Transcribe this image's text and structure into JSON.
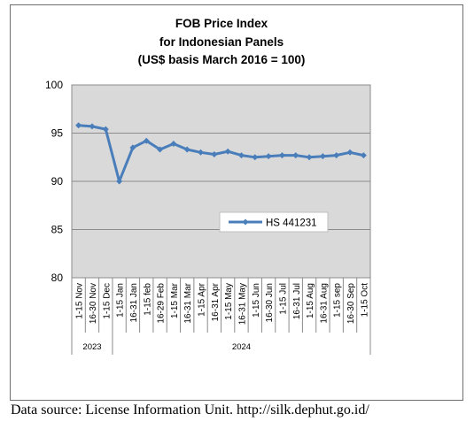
{
  "chart_data": {
    "type": "line",
    "title": [
      "FOB Price Index",
      "for Indonesian Panels",
      "(US$ basis March 2016 = 100)"
    ],
    "categories": [
      "1-15 Nov",
      "16-30 Nov",
      "1-15 Dec",
      "1-15 Jan",
      "16-31 Jan",
      "1-15 feb",
      "16-29 Feb",
      "1-15 Mar",
      "16-31 Mar",
      "1-15 Apr",
      "16-31 Apr",
      "1-15 May",
      "16-31 May",
      "1-15 Jun",
      "16-30 Jun",
      "1-15 Jul",
      "16-31 Jul",
      "1-15 Aug",
      "16-31 Aug",
      "1-15 sep",
      "16-30 Sep",
      "1-15 Oct"
    ],
    "year_groups": [
      {
        "label": "2023",
        "count": 3
      },
      {
        "label": "2024",
        "count": 19
      }
    ],
    "series": [
      {
        "name": "HS 441231",
        "values": [
          95.8,
          95.7,
          95.4,
          90.0,
          93.5,
          94.2,
          93.3,
          93.9,
          93.3,
          93.0,
          92.8,
          93.1,
          92.7,
          92.5,
          92.6,
          92.7,
          92.7,
          92.5,
          92.6,
          92.7,
          93.0,
          92.7
        ]
      }
    ],
    "ylim": [
      80,
      100
    ],
    "yticks": [
      80,
      85,
      90,
      95,
      100
    ],
    "grid": true,
    "legend": "inside-lower-right",
    "colors": {
      "plot_bg": "#d9d9d9",
      "line": "#4a7ebb",
      "grid": "#8c8c8c"
    }
  },
  "source_note": "Data source: License Information Unit. http://silk.dephut.go.id/"
}
